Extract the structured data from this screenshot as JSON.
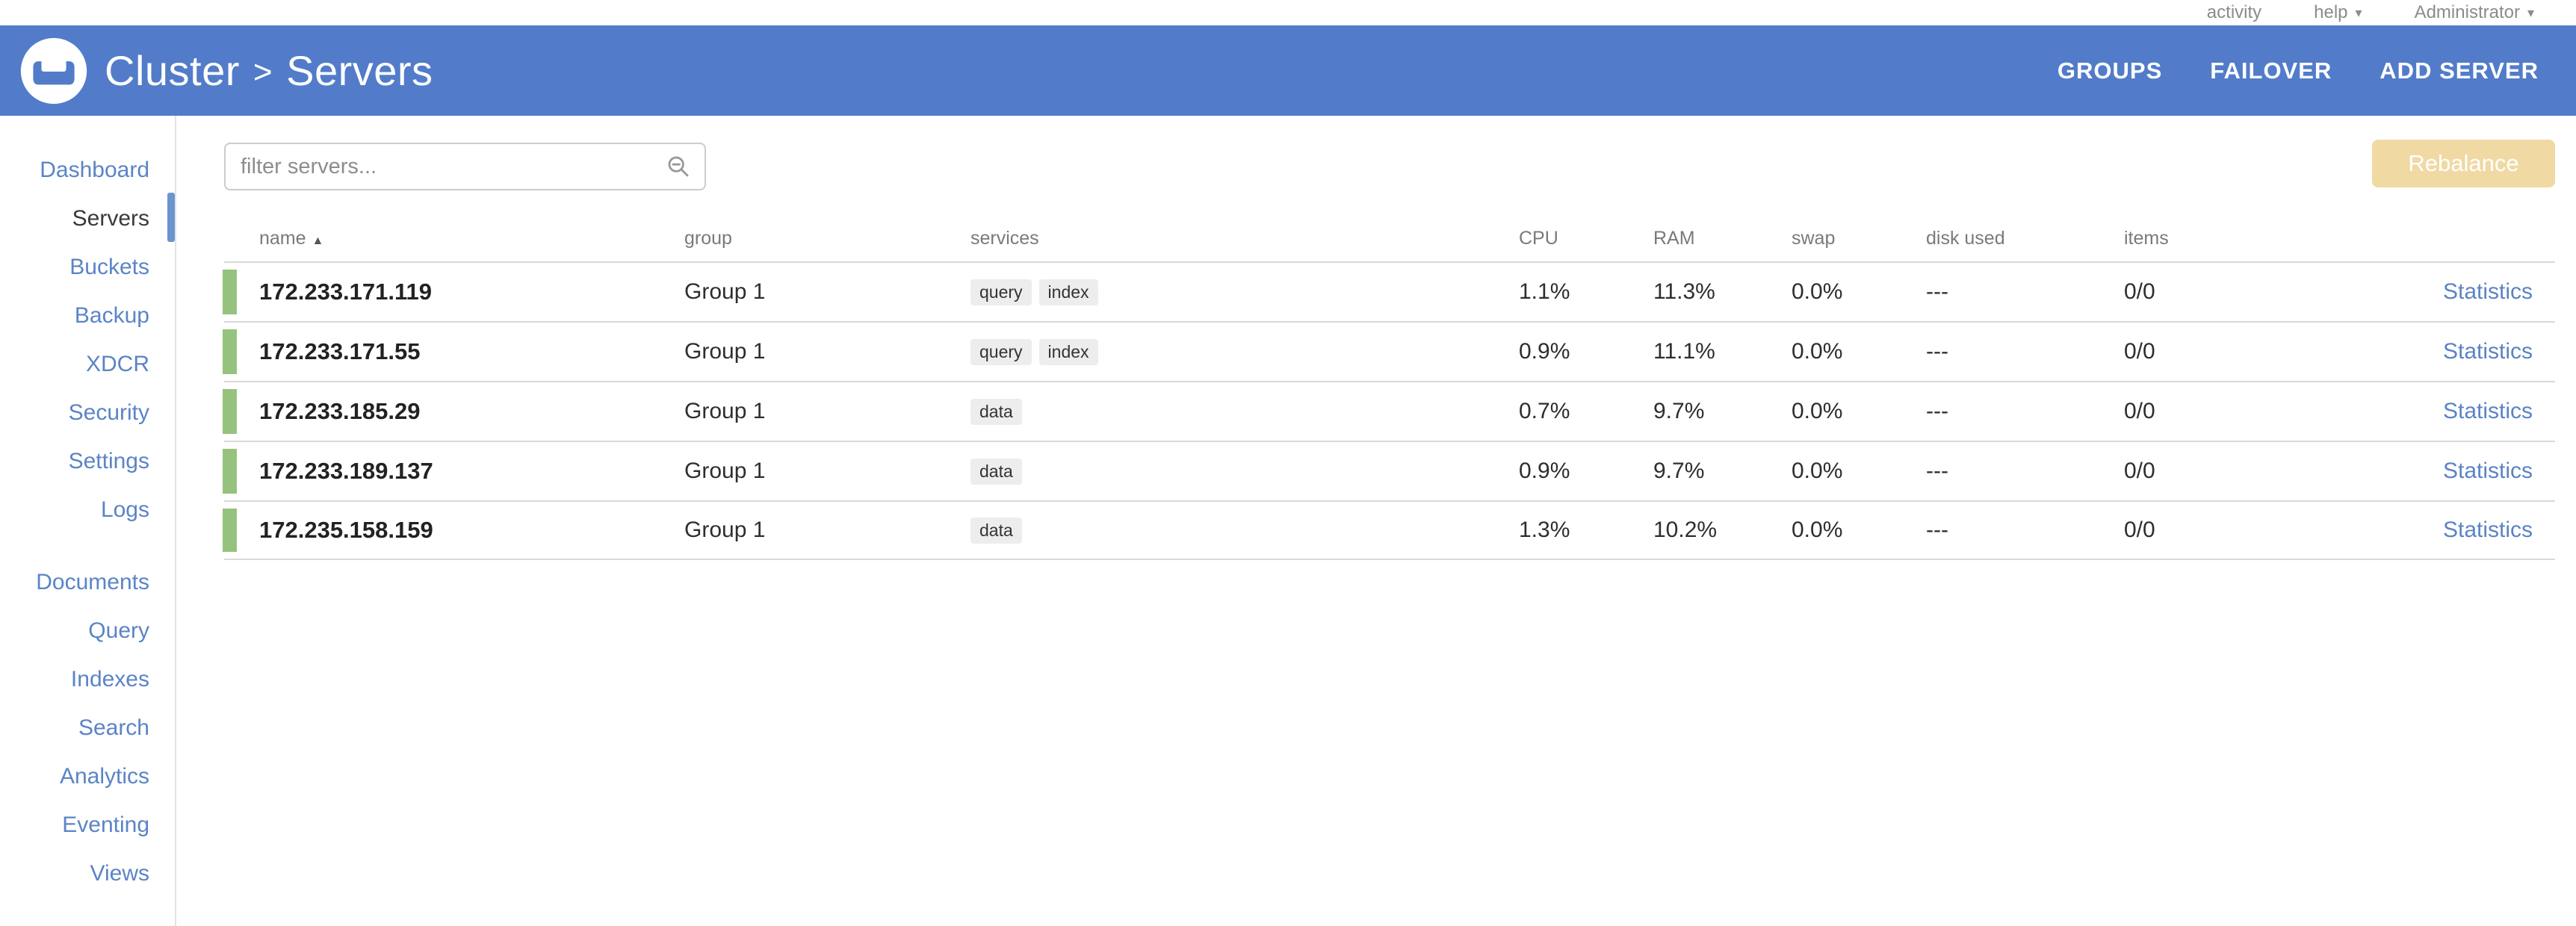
{
  "topbar": {
    "activity": "activity",
    "help": "help",
    "user": "Administrator"
  },
  "header": {
    "breadcrumb_root": "Cluster",
    "breadcrumb_separator": ">",
    "breadcrumb_current": "Servers",
    "actions": [
      {
        "label": "GROUPS"
      },
      {
        "label": "FAILOVER"
      },
      {
        "label": "ADD SERVER"
      }
    ]
  },
  "sidebar": {
    "groups": [
      {
        "items": [
          {
            "label": "Dashboard",
            "active": false
          },
          {
            "label": "Servers",
            "active": true
          },
          {
            "label": "Buckets",
            "active": false
          },
          {
            "label": "Backup",
            "active": false
          },
          {
            "label": "XDCR",
            "active": false
          },
          {
            "label": "Security",
            "active": false
          },
          {
            "label": "Settings",
            "active": false
          },
          {
            "label": "Logs",
            "active": false
          }
        ]
      },
      {
        "items": [
          {
            "label": "Documents",
            "active": false
          },
          {
            "label": "Query",
            "active": false
          },
          {
            "label": "Indexes",
            "active": false
          },
          {
            "label": "Search",
            "active": false
          },
          {
            "label": "Analytics",
            "active": false
          },
          {
            "label": "Eventing",
            "active": false
          },
          {
            "label": "Views",
            "active": false
          }
        ]
      }
    ]
  },
  "toolbar": {
    "filter_placeholder": "filter servers...",
    "filter_value": "",
    "rebalance_label": "Rebalance"
  },
  "table": {
    "columns": [
      "name",
      "group",
      "services",
      "CPU",
      "RAM",
      "swap",
      "disk used",
      "items",
      ""
    ],
    "sorted_column": "name",
    "sort_direction": "asc",
    "statistics_label": "Statistics",
    "rows": [
      {
        "name": "172.233.171.119",
        "group": "Group 1",
        "services": [
          "query",
          "index"
        ],
        "cpu": "1.1%",
        "ram": "11.3%",
        "swap": "0.0%",
        "disk_used": "---",
        "items": "0/0",
        "status": "healthy"
      },
      {
        "name": "172.233.171.55",
        "group": "Group 1",
        "services": [
          "query",
          "index"
        ],
        "cpu": "0.9%",
        "ram": "11.1%",
        "swap": "0.0%",
        "disk_used": "---",
        "items": "0/0",
        "status": "healthy"
      },
      {
        "name": "172.233.185.29",
        "group": "Group 1",
        "services": [
          "data"
        ],
        "cpu": "0.7%",
        "ram": "9.7%",
        "swap": "0.0%",
        "disk_used": "---",
        "items": "0/0",
        "status": "healthy"
      },
      {
        "name": "172.233.189.137",
        "group": "Group 1",
        "services": [
          "data"
        ],
        "cpu": "0.9%",
        "ram": "9.7%",
        "swap": "0.0%",
        "disk_used": "---",
        "items": "0/0",
        "status": "healthy"
      },
      {
        "name": "172.235.158.159",
        "group": "Group 1",
        "services": [
          "data"
        ],
        "cpu": "1.3%",
        "ram": "10.2%",
        "swap": "0.0%",
        "disk_used": "---",
        "items": "0/0",
        "status": "healthy"
      }
    ]
  },
  "colors": {
    "header_blue": "#527cc9",
    "nav_link_blue": "#5b84c6",
    "healthy_green": "#95c27d",
    "rebalance_tan": "#f1d9a4",
    "link_blue": "#5b83c4"
  }
}
